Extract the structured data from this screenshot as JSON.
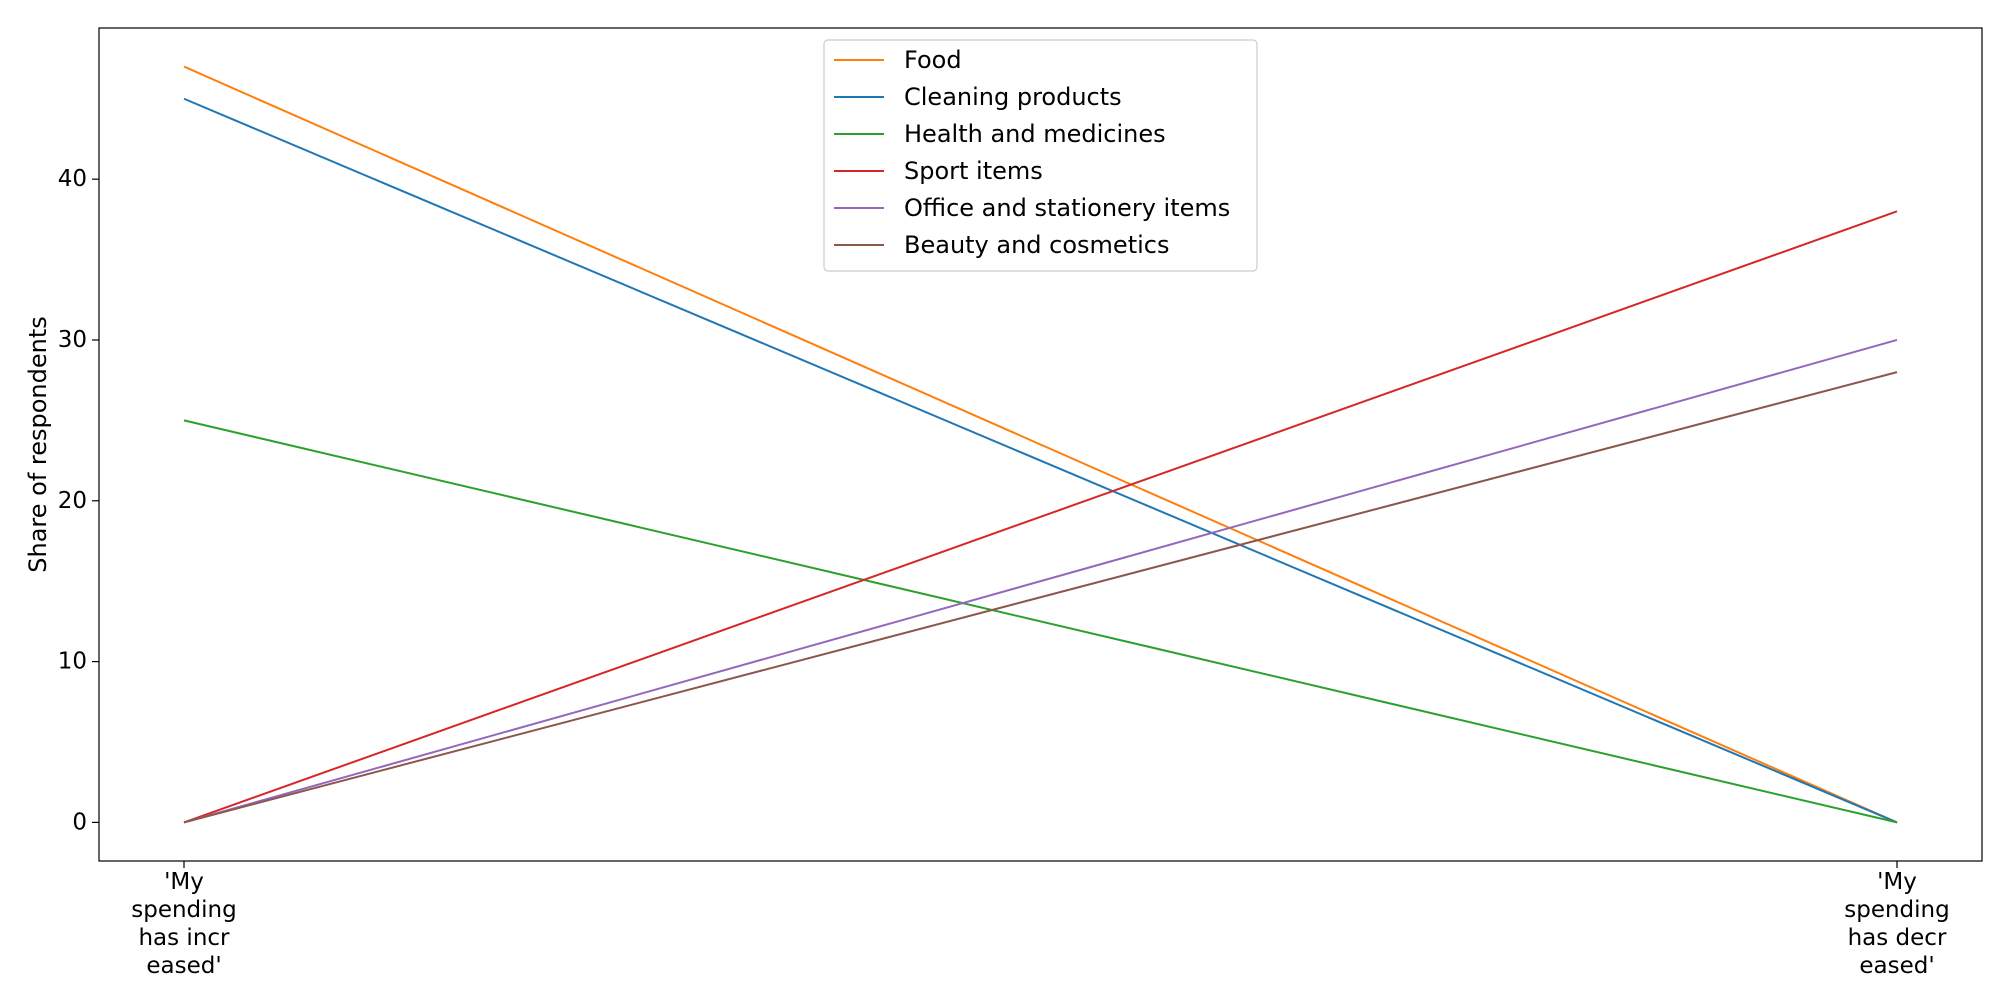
{
  "chart_data": {
    "type": "line",
    "categories": [
      [
        "'My",
        "spending",
        "has incr",
        "eased'"
      ],
      [
        "'My",
        "spending",
        "has decr",
        "eased'"
      ]
    ],
    "ylabel": "Share of respondents",
    "xlabel": "",
    "ylim": [
      -2.4,
      49.4
    ],
    "yticks": [
      0,
      10,
      20,
      30,
      40
    ],
    "grid": false,
    "legend_position": "top-center",
    "series": [
      {
        "name": "Food",
        "values": [
          47,
          0
        ],
        "color": "#ff7f0e"
      },
      {
        "name": "Cleaning products",
        "values": [
          45,
          0
        ],
        "color": "#1f77b4"
      },
      {
        "name": "Health and medicines",
        "values": [
          25,
          0
        ],
        "color": "#2ca02c"
      },
      {
        "name": "Sport items",
        "values": [
          0,
          38
        ],
        "color": "#d62728"
      },
      {
        "name": "Office and stationery items",
        "values": [
          0,
          30
        ],
        "color": "#9467bd"
      },
      {
        "name": "Beauty and cosmetics",
        "values": [
          0,
          28
        ],
        "color": "#8c564b"
      }
    ]
  }
}
